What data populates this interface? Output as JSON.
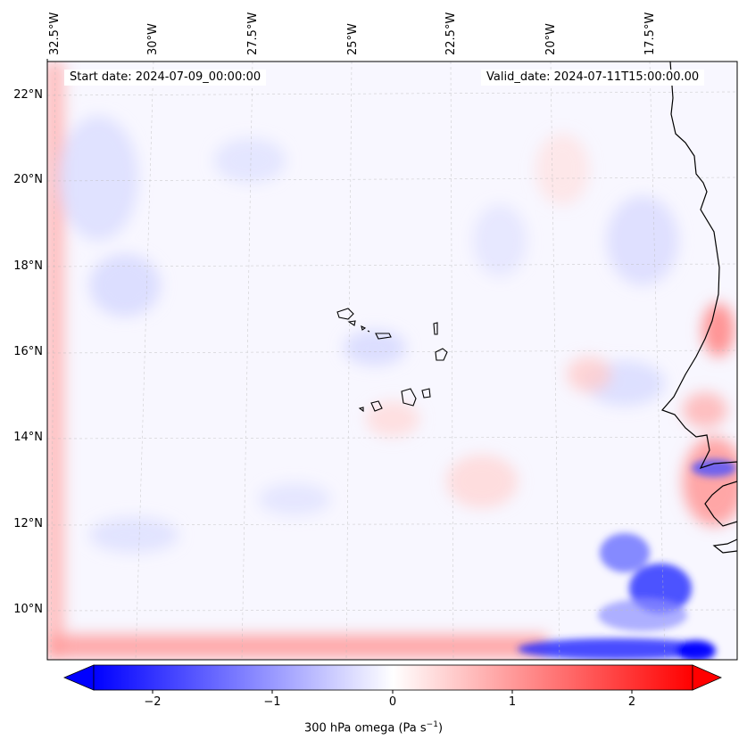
{
  "map": {
    "start_date": "Start date: 2024-07-09_00:00:00",
    "valid_date": "Valid_date: 2024-07-11T15:00:00.00",
    "lon_labels": [
      "32.5°W",
      "30°W",
      "27.5°W",
      "25°W",
      "22.5°W",
      "20°W",
      "17.5°W"
    ],
    "lat_labels": [
      "22°N",
      "20°N",
      "18°N",
      "16°N",
      "14°N",
      "12°N",
      "10°N"
    ]
  },
  "colorbar": {
    "ticks": [
      "−2",
      "−1",
      "0",
      "1",
      "2"
    ],
    "label": "300 hPa omega (Pa s",
    "label_sup": "−1",
    "label_end": ")",
    "min_color": "#0000ff",
    "mid_color": "#ffffff",
    "max_color": "#ff0000"
  }
}
